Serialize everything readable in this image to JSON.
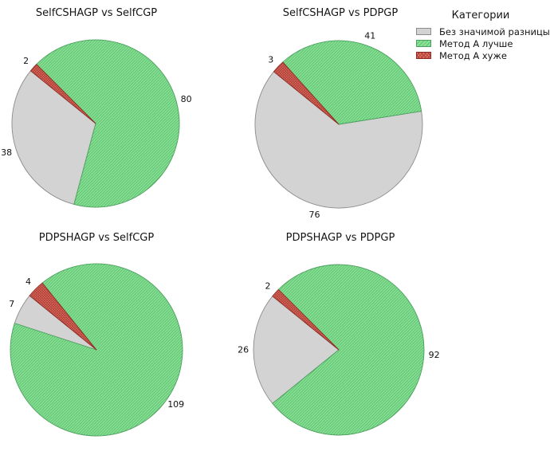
{
  "legend": {
    "title": "Категории",
    "items": [
      {
        "label": "Без значимой разницы",
        "key": "no-difference",
        "color": "#d3d3d3",
        "hatch": "none"
      },
      {
        "label": "Метод А лучше",
        "key": "method-a-better",
        "color": "#88e295",
        "hatch": "diagonal"
      },
      {
        "label": "Метод А хуже",
        "key": "method-a-worse",
        "color": "#e2756b",
        "hatch": "cross"
      }
    ]
  },
  "style": {
    "gray_fill": "#d3d3d3",
    "gray_edge": "#8c8c8c",
    "green_fill": "#88e295",
    "green_hatch": "#60bf72",
    "green_edge": "#4da05f",
    "red_fill": "#e2756b",
    "red_hatch": "#a8392f",
    "red_edge": "#8f2d24",
    "label_color": "#111111"
  },
  "chart_data": [
    {
      "type": "pie",
      "title": "SelfCSHAGP vs SelfCGP",
      "start_angle": 141,
      "direction": "counterclockwise",
      "total": 120,
      "slices": [
        {
          "category": "Без значимой разницы",
          "key": "no-difference",
          "value": 38
        },
        {
          "category": "Метод А лучше",
          "key": "method-a-better",
          "value": 80
        },
        {
          "category": "Метод А хуже",
          "key": "method-a-worse",
          "value": 2
        }
      ]
    },
    {
      "type": "pie",
      "title": "SelfCSHAGP vs PDPGP",
      "start_angle": 141,
      "direction": "counterclockwise",
      "total": 120,
      "slices": [
        {
          "category": "Без значимой разницы",
          "key": "no-difference",
          "value": 76
        },
        {
          "category": "Метод А лучше",
          "key": "method-a-better",
          "value": 41
        },
        {
          "category": "Метод А хуже",
          "key": "method-a-worse",
          "value": 3
        }
      ]
    },
    {
      "type": "pie",
      "title": "PDPSHAGP vs SelfCGP",
      "start_angle": 141,
      "direction": "counterclockwise",
      "total": 120,
      "slices": [
        {
          "category": "Без значимой разницы",
          "key": "no-difference",
          "value": 7
        },
        {
          "category": "Метод А лучше",
          "key": "method-a-better",
          "value": 109
        },
        {
          "category": "Метод А хуже",
          "key": "method-a-worse",
          "value": 4
        }
      ]
    },
    {
      "type": "pie",
      "title": "PDPSHAGP vs PDPGP",
      "start_angle": 141,
      "direction": "counterclockwise",
      "total": 120,
      "slices": [
        {
          "category": "Без значимой разницы",
          "key": "no-difference",
          "value": 26
        },
        {
          "category": "Метод А лучше",
          "key": "method-a-better",
          "value": 92
        },
        {
          "category": "Метод А хуже",
          "key": "method-a-worse",
          "value": 2
        }
      ]
    }
  ]
}
